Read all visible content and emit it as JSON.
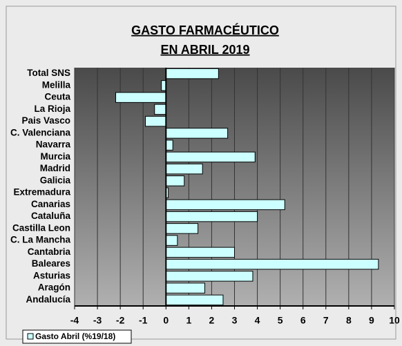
{
  "chart_data": {
    "type": "barh",
    "title": "GASTO FARMACÉUTICO",
    "subtitle": "EN ABRIL 2019",
    "categories": [
      "Total SNS",
      "Melilla",
      "Ceuta",
      "La Rioja",
      "Pais Vasco",
      "C. Valenciana",
      "Navarra",
      "Murcia",
      "Madrid",
      "Galicia",
      "Extremadura",
      "Canarias",
      "Cataluña",
      "Castilla Leon",
      "C. La Mancha",
      "Cantabria",
      "Baleares",
      "Asturias",
      "Aragón",
      "Andalucía"
    ],
    "series": [
      {
        "name": "Gasto Abril (%19/18)",
        "color": "#ccffff",
        "values": [
          2.3,
          -0.2,
          -2.2,
          -0.5,
          -0.9,
          2.7,
          0.3,
          3.9,
          1.6,
          0.8,
          0.1,
          5.2,
          4.0,
          1.4,
          0.5,
          3.0,
          9.3,
          3.8,
          1.7,
          2.5
        ]
      }
    ],
    "xlim": [
      -4,
      10
    ],
    "xticks": [
      -4,
      -3,
      -2,
      -1,
      0,
      1,
      2,
      3,
      4,
      5,
      6,
      7,
      8,
      9,
      10
    ],
    "grid": true,
    "legend": "bottom-left"
  }
}
